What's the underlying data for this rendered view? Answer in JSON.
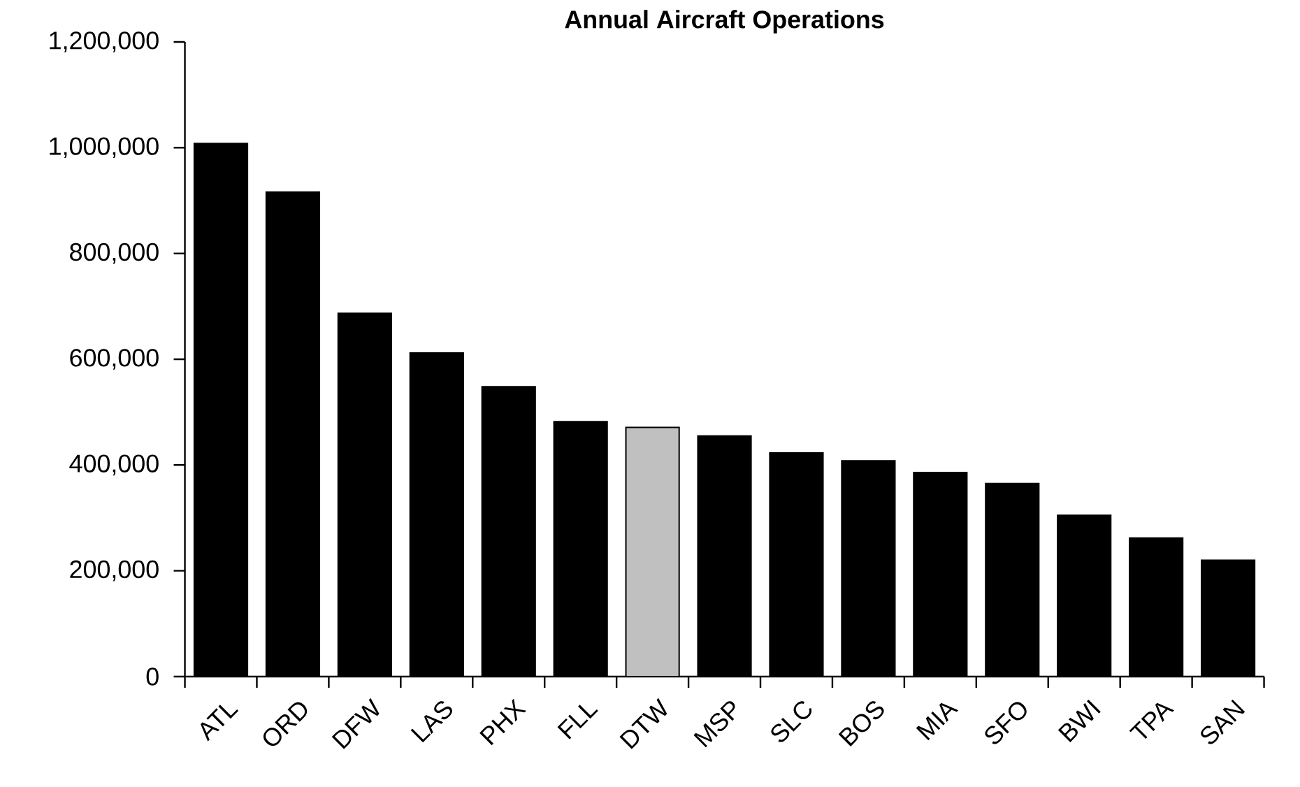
{
  "chart_data": {
    "type": "bar",
    "title": "Annual Aircraft Operations",
    "categories": [
      "ATL",
      "ORD",
      "DFW",
      "LAS",
      "PHX",
      "FLL",
      "DTW",
      "MSP",
      "SLC",
      "BOS",
      "MIA",
      "SFO",
      "BWI",
      "TPA",
      "SAN"
    ],
    "values": [
      1008000,
      916000,
      687000,
      612000,
      548000,
      482000,
      471000,
      455000,
      423000,
      408000,
      386000,
      365000,
      305000,
      262000,
      220000
    ],
    "colors": [
      "#000000",
      "#000000",
      "#000000",
      "#000000",
      "#000000",
      "#000000",
      "#c0c0c0",
      "#000000",
      "#000000",
      "#000000",
      "#000000",
      "#000000",
      "#000000",
      "#000000",
      "#000000"
    ],
    "ylim": [
      0,
      1200000
    ],
    "yticks": [
      {
        "value": 0,
        "label": "0"
      },
      {
        "value": 200000,
        "label": "200,000"
      },
      {
        "value": 400000,
        "label": "400,000"
      },
      {
        "value": 600000,
        "label": "600,000"
      },
      {
        "value": 800000,
        "label": "800,000"
      },
      {
        "value": 1000000,
        "label": "1,000,000"
      },
      {
        "value": 1200000,
        "label": "1,200,000"
      }
    ],
    "grid": false
  }
}
